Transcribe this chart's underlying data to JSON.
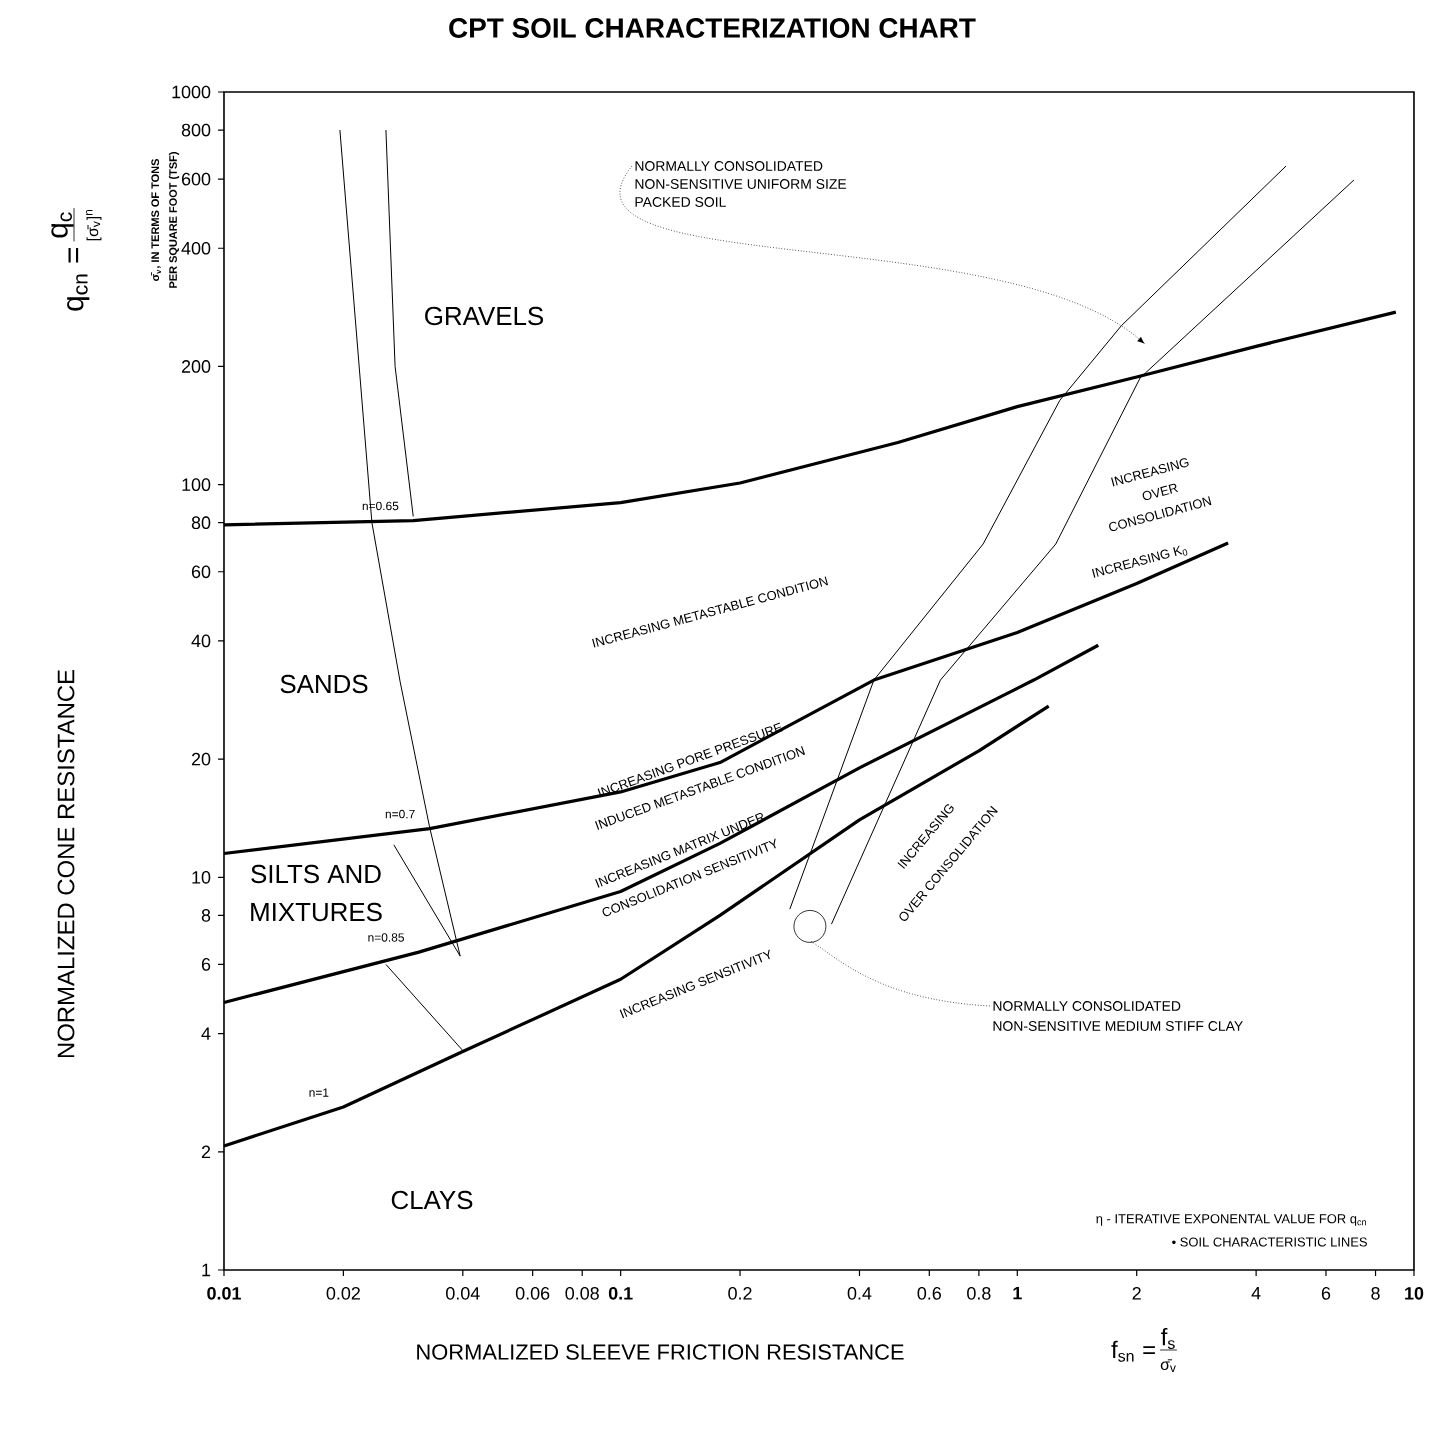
{
  "chart_data": {
    "type": "line",
    "title": "CPT SOIL CHARACTERIZATION CHART",
    "xlabel": "NORMALIZED SLEEVE FRICTION RESISTANCE",
    "ylabel": "NORMALIZED CONE RESISTANCE",
    "log": "xy",
    "xlim": [
      0.01,
      10
    ],
    "ylim": [
      1,
      1000
    ],
    "xticks": [
      0.01,
      0.02,
      0.04,
      0.06,
      0.08,
      0.1,
      0.2,
      0.4,
      0.6,
      0.8,
      1,
      2,
      4,
      6,
      8,
      10
    ],
    "yticks": [
      1,
      2,
      4,
      6,
      8,
      10,
      20,
      40,
      60,
      80,
      100,
      200,
      400,
      600,
      800,
      1000
    ],
    "series": [
      {
        "name": "n=0.65",
        "color": "#000000",
        "x": [
          0.01,
          0.03,
          0.1,
          0.2,
          0.5,
          1,
          2,
          4,
          9
        ],
        "values": [
          79,
          81,
          90,
          101,
          128,
          158,
          188,
          225,
          275
        ]
      },
      {
        "name": "n=0.7",
        "color": "#000000",
        "x": [
          0.01,
          0.033,
          0.1,
          0.178,
          0.3,
          0.435,
          1,
          2,
          3.4
        ],
        "values": [
          11.5,
          13.3,
          16.5,
          19.6,
          26,
          31.8,
          42,
          56,
          71
        ]
      },
      {
        "name": "n=0.85",
        "color": "#000000",
        "x": [
          0.01,
          0.031,
          0.1,
          0.178,
          0.4,
          1.1,
          1.6
        ],
        "values": [
          4.8,
          6.45,
          9.2,
          12.2,
          19,
          31.8,
          39
        ]
      },
      {
        "name": "n=1",
        "color": "#000000",
        "x": [
          0.01,
          0.02,
          0.04,
          0.1,
          0.178,
          0.4,
          0.8,
          1.2
        ],
        "values": [
          2.07,
          2.6,
          3.6,
          5.5,
          8,
          14,
          21,
          27.3
        ]
      },
      {
        "color": "#000000",
        "x": [
          0.267,
          0.435,
          0.82,
          1.28,
          1.83,
          4.76
        ],
        "values": [
          8.3,
          31.8,
          70.6,
          164,
          254,
          648
        ]
      },
      {
        "color": "#000000",
        "x": [
          0.34,
          0.64,
          1.25,
          2.04,
          7.06
        ],
        "values": [
          7.6,
          31.8,
          70.6,
          187,
          597
        ]
      },
      {
        "color": "#000000",
        "x": [
          0.0196,
          0.0236,
          0.0278,
          0.033,
          0.0394
        ],
        "values": [
          800,
          80,
          31.5,
          13.4,
          6.3
        ]
      },
      {
        "color": "#000000",
        "x": [
          0.0256,
          0.027,
          0.03
        ],
        "values": [
          800,
          200,
          83
        ]
      },
      {
        "color": "#000000",
        "x": [
          0.0268,
          0.0394
        ],
        "values": [
          12.1,
          6.3
        ]
      },
      {
        "color": "#000000",
        "x": [
          0.0256,
          0.0402
        ],
        "values": [
          6.0,
          3.6
        ]
      }
    ],
    "annotations": [
      "GRAVELS",
      "SANDS",
      "SILTS AND",
      "MIXTURES",
      "CLAYS",
      "INCREASING METASTABLE CONDITION",
      "INCREASING PORE PRESSURE",
      "INDUCED METASTABLE CONDITION",
      "INCREASING MATRIX UNDER",
      "CONSOLIDATION SENSITIVITY",
      "INCREASING SENSITIVITY",
      "INCREASING",
      "OVER CONSOLIDATION",
      "INCREASING",
      "OVER",
      "CONSOLIDATION",
      "INCREASING K$_{0}$",
      {
        "text": "NORMALLY CONSOLIDATED",
        "x": 2.1,
        "y": 228
      },
      "NON-SENSITIVE UNIFORM SIZE",
      "PACKED SOIL",
      {
        "text": "NORMALLY CONSOLIDATED",
        "x": 0.3,
        "y": 7.5
      },
      "NON-SENSITIVE MEDIUM STIFF CLAY",
      "η - ITERATIVE EXPONENTAL VALUE FOR  q$_{cn}$",
      "• SOIL CHARACTERISTIC LINES",
      "q$_{cn}$ =",
      "q$_{c}$",
      "[σ̄$_{v}$]$^{n}$",
      "σ̄$_{v}$, IN TERMS OF TONS",
      "PER SQUARE FOOT (TSF)",
      "f$_{sn}$ =",
      "f$_{s}$",
      "σ̄$_{v}$"
    ]
  }
}
